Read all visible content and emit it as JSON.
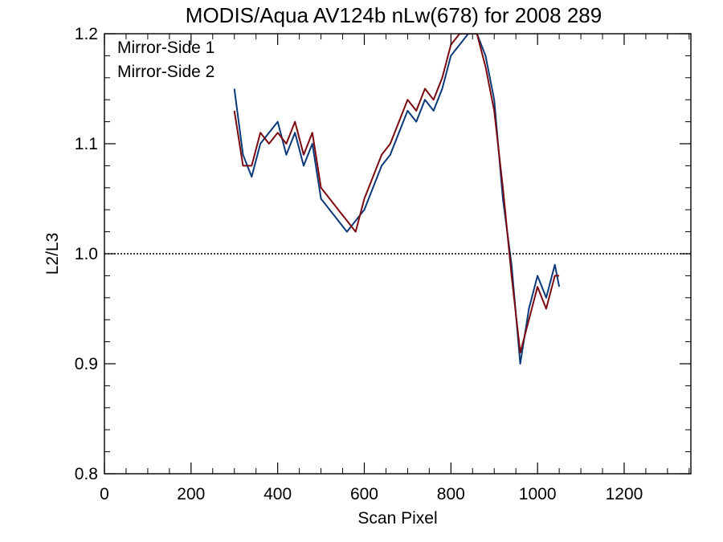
{
  "chart_data": {
    "type": "line",
    "title": "MODIS/Aqua AV124b nLw(678) for 2008 289",
    "xlabel": "Scan Pixel",
    "ylabel": "L2/L3",
    "xlim": [
      0,
      1354
    ],
    "ylim": [
      0.8,
      1.2
    ],
    "x_ticks": [
      0,
      200,
      400,
      600,
      800,
      1000,
      1200
    ],
    "y_ticks": [
      0.8,
      0.9,
      1.0,
      1.1,
      1.2
    ],
    "x_tick_labels": [
      "0",
      "200",
      "400",
      "600",
      "800",
      "1000",
      "1200"
    ],
    "y_tick_labels": [
      "0.8",
      "0.9",
      "1.0",
      "1.1",
      "1.2"
    ],
    "reference_line": {
      "y": 1.0,
      "style": "dotted"
    },
    "legend_placement": "top-left",
    "x": [
      300,
      320,
      340,
      360,
      380,
      400,
      420,
      440,
      460,
      480,
      500,
      520,
      540,
      560,
      580,
      600,
      620,
      640,
      660,
      680,
      700,
      720,
      740,
      760,
      780,
      800,
      820,
      840,
      860,
      880,
      900,
      920,
      940,
      960,
      980,
      1000,
      1020,
      1040,
      1050
    ],
    "series": [
      {
        "name": "Mirror-Side 1",
        "color": "#0a3a7a",
        "values": [
          1.15,
          1.09,
          1.07,
          1.1,
          1.11,
          1.12,
          1.09,
          1.11,
          1.08,
          1.1,
          1.05,
          1.04,
          1.03,
          1.02,
          1.03,
          1.04,
          1.06,
          1.08,
          1.09,
          1.11,
          1.13,
          1.12,
          1.14,
          1.13,
          1.15,
          1.18,
          1.19,
          1.2,
          1.2,
          1.18,
          1.14,
          1.05,
          0.99,
          0.9,
          0.95,
          0.98,
          0.96,
          0.99,
          0.97
        ]
      },
      {
        "name": "Mirror-Side 2",
        "color": "#7a0a10",
        "values": [
          1.13,
          1.08,
          1.08,
          1.11,
          1.1,
          1.11,
          1.1,
          1.12,
          1.09,
          1.11,
          1.06,
          1.05,
          1.04,
          1.03,
          1.02,
          1.05,
          1.07,
          1.09,
          1.1,
          1.12,
          1.14,
          1.13,
          1.15,
          1.14,
          1.16,
          1.19,
          1.2,
          1.2,
          1.2,
          1.17,
          1.13,
          1.06,
          0.98,
          0.91,
          0.94,
          0.97,
          0.95,
          0.98,
          0.98
        ]
      }
    ]
  }
}
